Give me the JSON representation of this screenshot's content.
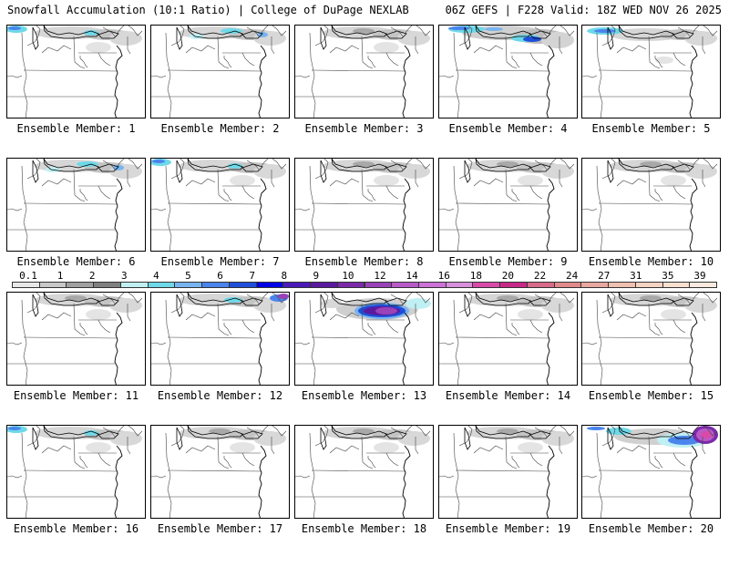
{
  "header": {
    "title_left": "Snowfall Accumulation (10:1 Ratio) | College of DuPage NEXLAB",
    "title_right": "06Z GEFS | F228 Valid: 18Z WED NOV 26 2025"
  },
  "colorbar": {
    "ticks": [
      "0.1",
      "1",
      "2",
      "3",
      "4",
      "5",
      "6",
      "7",
      "8",
      "9",
      "10",
      "12",
      "14",
      "16",
      "18",
      "20",
      "22",
      "24",
      "27",
      "31",
      "35",
      "39"
    ],
    "colors": [
      "#e8e8e8",
      "#c8c8c8",
      "#a0a0a0",
      "#808080",
      "#c0f0f4",
      "#6ed8e8",
      "#78b4f0",
      "#4a84ec",
      "#1f4ed8",
      "#0000e8",
      "#4a1ab8",
      "#5a1aa0",
      "#7a2aa8",
      "#9a42b8",
      "#b85ac8",
      "#cc72d8",
      "#d890dc",
      "#d84aa8",
      "#c82888",
      "#d86a8a",
      "#e08a8a",
      "#e8a8a0",
      "#f0c0b0",
      "#f5d2c2",
      "#f8e0d0",
      "#fbeadf"
    ]
  },
  "panels": [
    {
      "label": "Ensemble Member: 1",
      "snow": "light-ne-blue-west"
    },
    {
      "label": "Ensemble Member: 2",
      "snow": "light-ne-blue-strip"
    },
    {
      "label": "Ensemble Member: 3",
      "snow": "light-ne"
    },
    {
      "label": "Ensemble Member: 4",
      "snow": "moderate-blue-ne"
    },
    {
      "label": "Ensemble Member: 5",
      "snow": "light-blue-north"
    },
    {
      "label": "Ensemble Member: 6",
      "snow": "light-ne-blue-strip"
    },
    {
      "label": "Ensemble Member: 7",
      "snow": "light-ne-blue-west"
    },
    {
      "label": "Ensemble Member: 8",
      "snow": "light-ne"
    },
    {
      "label": "Ensemble Member: 9",
      "snow": "light-ne"
    },
    {
      "label": "Ensemble Member: 10",
      "snow": "light-ne"
    },
    {
      "label": "Ensemble Member: 11",
      "snow": "light-ne"
    },
    {
      "label": "Ensemble Member: 12",
      "snow": "light-ne-purple-east"
    },
    {
      "label": "Ensemble Member: 13",
      "snow": "heavy-purple-central"
    },
    {
      "label": "Ensemble Member: 14",
      "snow": "light-ne"
    },
    {
      "label": "Ensemble Member: 15",
      "snow": "light-ne"
    },
    {
      "label": "Ensemble Member: 16",
      "snow": "light-ne-blue-west"
    },
    {
      "label": "Ensemble Member: 17",
      "snow": "light-ne"
    },
    {
      "label": "Ensemble Member: 18",
      "snow": "light-ne"
    },
    {
      "label": "Ensemble Member: 19",
      "snow": "light-ne"
    },
    {
      "label": "Ensemble Member: 20",
      "snow": "heavy-magenta-ne"
    }
  ]
}
